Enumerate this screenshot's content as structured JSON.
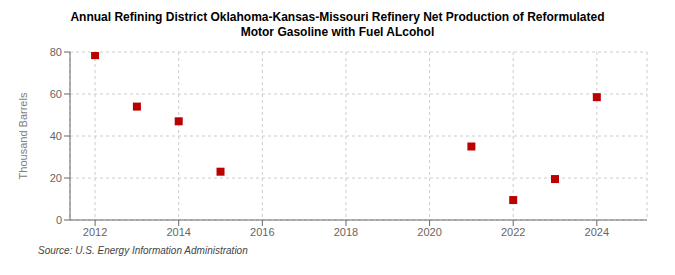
{
  "chart_data": {
    "type": "scatter",
    "title": "Annual Refining District Oklahoma-Kansas-Missouri Refinery Net Production of Reformulated\nMotor Gasoline with Fuel ALcohol",
    "ylabel": "Thousand Barrels",
    "annotations": [
      "Source: U.S. Energy Information Administration"
    ],
    "x": [
      2012,
      2013,
      2014,
      2015,
      2021,
      2022,
      2023,
      2024
    ],
    "values": [
      78.5,
      54.0,
      47.0,
      23.0,
      35.0,
      9.5,
      19.5,
      58.5
    ],
    "color": "#bb0000",
    "marker": "square",
    "xlim": [
      2011.4,
      2025.2
    ],
    "xticks": [
      2012,
      2014,
      2016,
      2018,
      2020,
      2022,
      2024
    ],
    "ylim": [
      0,
      80
    ],
    "yticks": [
      0,
      20,
      40,
      60,
      80
    ],
    "grid": true
  }
}
